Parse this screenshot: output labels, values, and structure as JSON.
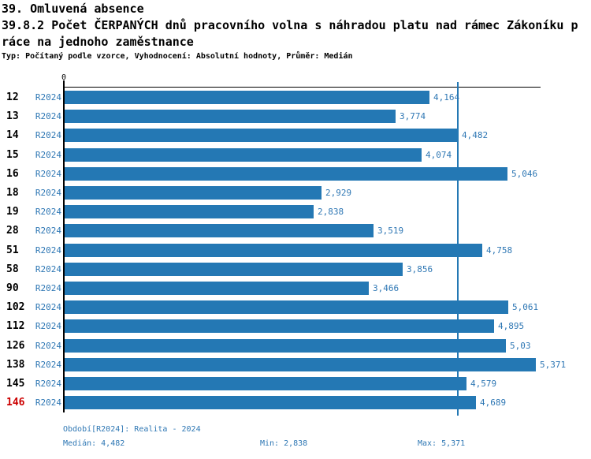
{
  "header": {
    "line1": "39. Omluvená absence",
    "line2": "39.8.2 Počet ČERPANÝCH dnů pracovního volna s náhradou platu nad rámec Zákoníku p",
    "line3": "ráce na jednoho zaměstnance",
    "meta": "Typ: Počítaný podle vzorce, Vyhodnocení: Absolutní hodnoty, Průměr: Medián"
  },
  "chart_data": {
    "type": "bar",
    "orientation": "horizontal",
    "title": "39.8.2 Počet ČERPANÝCH dnů pracovního volna s náhradou platu nad rámec Zákoníku práce na jednoho zaměstnance",
    "axis_origin_label": "0",
    "series_label": "R2024",
    "categories": [
      "12",
      "13",
      "14",
      "15",
      "16",
      "18",
      "19",
      "28",
      "51",
      "58",
      "90",
      "102",
      "112",
      "126",
      "138",
      "145",
      "146"
    ],
    "values": [
      4.164,
      3.774,
      4.482,
      4.074,
      5.046,
      2.929,
      2.838,
      3.519,
      4.758,
      3.856,
      3.466,
      5.061,
      4.895,
      5.03,
      5.371,
      4.579,
      4.689
    ],
    "value_labels": [
      "4,164",
      "3,774",
      "4,482",
      "4,074",
      "5,046",
      "2,929",
      "2,838",
      "3,519",
      "4,758",
      "3,856",
      "3,466",
      "5,061",
      "4,895",
      "5,03",
      "5,371",
      "4,579",
      "4,689"
    ],
    "highlighted_category": "146",
    "median_line_value": 4.482,
    "xlim": [
      0,
      5.43
    ],
    "grid": false,
    "legend": "none",
    "bar_color": "#2478b4",
    "label_color": "#2e77b4",
    "highlight_color": "#cc0000"
  },
  "footer": {
    "period": "Období[R2024]: Realita - 2024",
    "median": "Medián: 4,482",
    "min": "Min: 2,838",
    "max": "Max: 5,371"
  }
}
